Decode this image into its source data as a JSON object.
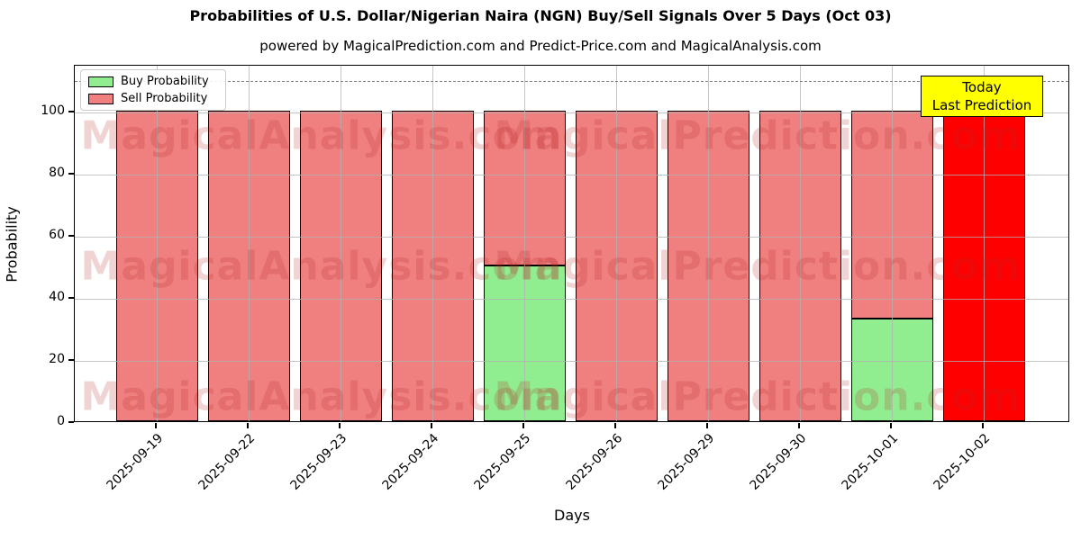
{
  "title": "Probabilities of U.S. Dollar/Nigerian Naira (NGN) Buy/Sell Signals Over 5 Days (Oct 03)",
  "subtitle": "powered by MagicalPrediction.com and Predict-Price.com and MagicalAnalysis.com",
  "xlabel": "Days",
  "ylabel": "Probability",
  "legend": {
    "buy_label": "Buy Probability",
    "sell_label": "Sell Probability"
  },
  "annotation": {
    "line1": "Today",
    "line2": "Last Prediction",
    "bg_color": "#ffff00"
  },
  "watermarks": {
    "left_text": "MagicalAnalysis.com",
    "right_text": "MagicalPrediction.com"
  },
  "colors": {
    "buy": "#90ee90",
    "sell": "#f08080",
    "today_sell": "#ff0000",
    "bar_edge": "#000000",
    "dashed_line": "#7f7f7f"
  },
  "chart_data": {
    "type": "bar",
    "stacked": true,
    "categories": [
      "2025-09-19",
      "2025-09-22",
      "2025-09-23",
      "2025-09-24",
      "2025-09-25",
      "2025-09-26",
      "2025-09-29",
      "2025-09-30",
      "2025-10-01",
      "2025-10-02"
    ],
    "series": [
      {
        "name": "Buy Probability",
        "color": "#90ee90",
        "values": [
          0,
          0,
          0,
          0,
          50,
          0,
          0,
          0,
          33,
          0
        ]
      },
      {
        "name": "Sell Probability",
        "color": "#f08080",
        "values": [
          100,
          100,
          100,
          100,
          50,
          100,
          100,
          100,
          67,
          100
        ]
      }
    ],
    "today_index": 9,
    "today_sell_color": "#ff0000",
    "title": "Probabilities of U.S. Dollar/Nigerian Naira (NGN) Buy/Sell Signals Over 5 Days (Oct 03)",
    "xlabel": "Days",
    "ylabel": "Probability",
    "yticks": [
      0,
      20,
      40,
      60,
      80,
      100
    ],
    "ylim": [
      0,
      115
    ],
    "dashed_threshold": 110,
    "grid": true,
    "legend_position": "upper left"
  }
}
